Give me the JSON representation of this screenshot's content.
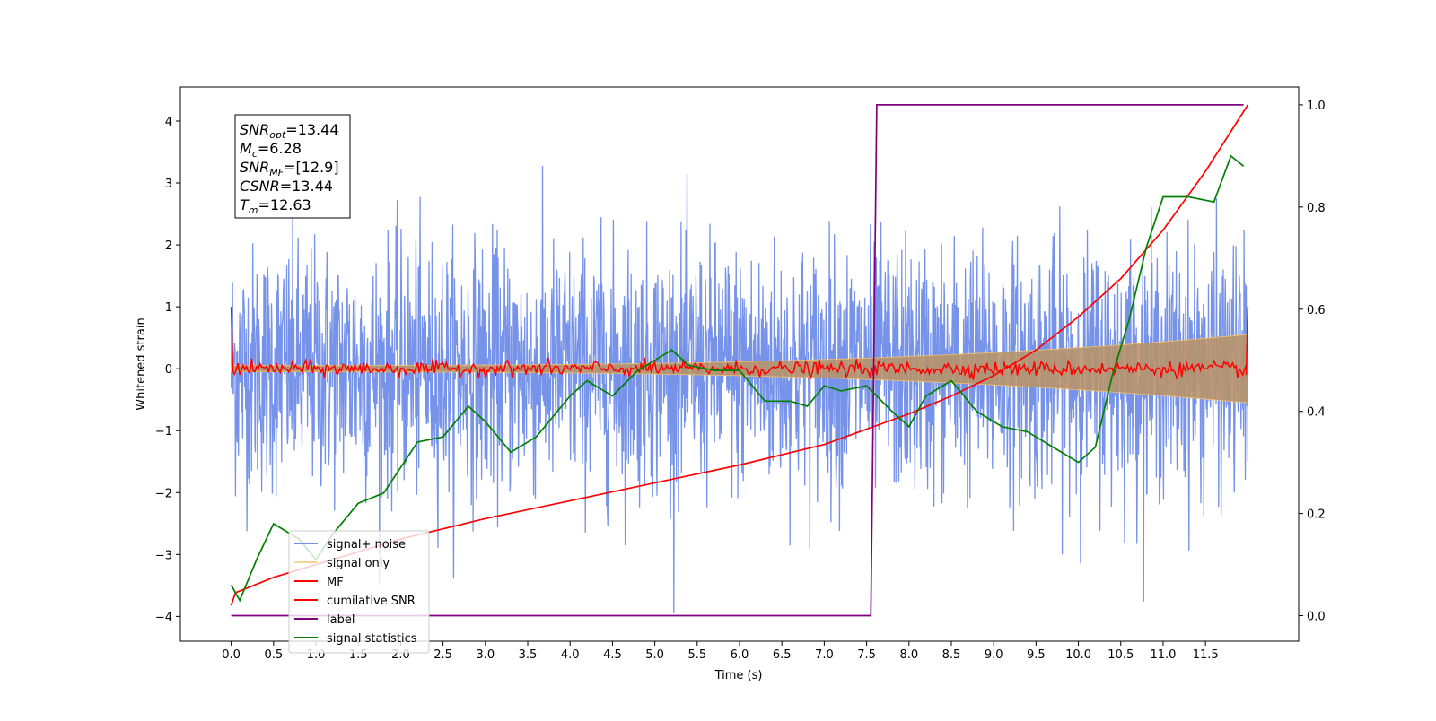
{
  "chart_data": {
    "type": "line",
    "xlabel": "Time (s)",
    "ylabel": "Whitened strain",
    "ylabel_right": "",
    "xlim": [
      -0.6,
      12.6
    ],
    "ylim": [
      -4.4,
      4.55
    ],
    "ylim_right": [
      -0.05,
      1.035
    ],
    "xticks": [
      "0.0",
      "0.5",
      "1.0",
      "1.5",
      "2.0",
      "2.5",
      "3.0",
      "3.5",
      "4.0",
      "4.5",
      "5.0",
      "5.5",
      "6.0",
      "6.5",
      "7.0",
      "7.5",
      "8.0",
      "8.5",
      "9.0",
      "9.5",
      "10.0",
      "10.5",
      "11.0",
      "11.5"
    ],
    "yticks_left": [
      "4",
      "3",
      "2",
      "1",
      "0",
      "−1",
      "−2",
      "−3",
      "−4"
    ],
    "yticks_right": [
      "1.0",
      "0.8",
      "0.6",
      "0.4",
      "0.2",
      "0.0"
    ],
    "grid": false,
    "legend_position": "lower-left",
    "legend": [
      "signal+ noise",
      "signal only",
      "MF",
      "cumilative SNR",
      "label",
      "signal statistics"
    ],
    "stats_box": [
      {
        "name": "SNR",
        "sub": "opt",
        "value": "=13.44"
      },
      {
        "name": "M",
        "sub": "c",
        "value": "=6.28"
      },
      {
        "name": "SNR",
        "sub": "MF",
        "value": "=[12.9]"
      },
      {
        "name": "CSNR",
        "sub": "",
        "value": "=13.44"
      },
      {
        "name": "T",
        "sub": "m",
        "value": "=12.63"
      }
    ],
    "series": [
      {
        "name": "signal+ noise",
        "axis": "left",
        "color": "#4169e1",
        "style": "dense noise, amplitude roughly ±2.5, extremes to ±4",
        "envelope_std": 1.0,
        "x_range": [
          0,
          12.0
        ]
      },
      {
        "name": "signal only",
        "axis": "left",
        "color": "#f4c06a",
        "style": "chirp envelope growing from 0.05 to 0.55",
        "envelope_start": 0.05,
        "envelope_end": 0.55,
        "x_range": [
          0,
          12.0
        ]
      },
      {
        "name": "MF",
        "axis": "left",
        "color": "#ff0000",
        "style": "noise about 0 with amplitude ~0.1, spike to 1 at x=0 and x=12",
        "x_range": [
          0,
          12.0
        ]
      },
      {
        "name": "cumilative SNR",
        "axis": "right",
        "color": "#ff0000",
        "x": [
          0,
          0.05,
          0.5,
          1,
          2,
          3,
          4,
          5,
          6,
          7,
          7.5,
          8,
          8.5,
          9,
          9.5,
          10,
          10.5,
          11,
          11.5,
          12
        ],
        "y": [
          0.02,
          0.045,
          0.075,
          0.1,
          0.15,
          0.19,
          0.225,
          0.26,
          0.295,
          0.335,
          0.365,
          0.395,
          0.43,
          0.47,
          0.52,
          0.585,
          0.66,
          0.755,
          0.87,
          1.0
        ]
      },
      {
        "name": "label",
        "axis": "right",
        "color": "#800080",
        "x": [
          0,
          7.55,
          7.62,
          11.95
        ],
        "y": [
          0.0,
          0.0,
          1.0,
          1.0
        ]
      },
      {
        "name": "signal statistics",
        "axis": "right",
        "color": "#008000",
        "x": [
          0,
          0.1,
          0.3,
          0.5,
          0.8,
          1.0,
          1.2,
          1.5,
          1.8,
          2.0,
          2.2,
          2.5,
          2.8,
          3.0,
          3.3,
          3.6,
          3.8,
          4.0,
          4.2,
          4.5,
          4.8,
          5.2,
          5.4,
          5.7,
          6.0,
          6.3,
          6.6,
          6.8,
          7.0,
          7.2,
          7.5,
          7.8,
          8.0,
          8.2,
          8.5,
          8.8,
          9.1,
          9.4,
          9.7,
          10.0,
          10.2,
          10.4,
          10.6,
          10.8,
          11.0,
          11.3,
          11.6,
          11.8,
          11.95
        ],
        "y": [
          0.06,
          0.03,
          0.11,
          0.18,
          0.15,
          0.11,
          0.16,
          0.22,
          0.24,
          0.29,
          0.34,
          0.35,
          0.41,
          0.38,
          0.32,
          0.35,
          0.39,
          0.43,
          0.46,
          0.43,
          0.48,
          0.52,
          0.49,
          0.48,
          0.48,
          0.42,
          0.42,
          0.41,
          0.45,
          0.44,
          0.45,
          0.4,
          0.37,
          0.43,
          0.46,
          0.4,
          0.37,
          0.36,
          0.33,
          0.3,
          0.33,
          0.47,
          0.58,
          0.72,
          0.82,
          0.82,
          0.81,
          0.9,
          0.88
        ]
      }
    ]
  }
}
